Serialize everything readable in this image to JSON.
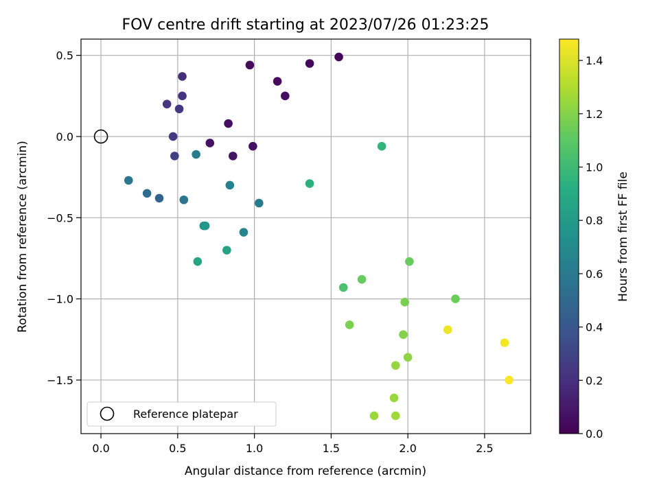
{
  "chart_data": {
    "type": "scatter",
    "title": "FOV centre drift starting at 2023/07/26 01:23:25",
    "xlabel": "Angular distance from reference (arcmin)",
    "ylabel": "Rotation from reference (arcmin)",
    "colorbar_label": "Hours from first FF file",
    "xlim": [
      -0.13,
      2.8
    ],
    "ylim": [
      -1.83,
      0.6
    ],
    "clim": [
      0.0,
      1.48
    ],
    "colormap": "viridis",
    "grid": true,
    "legend_placement": "lower-left",
    "xticks": [
      0.0,
      0.5,
      1.0,
      1.5,
      2.0,
      2.5
    ],
    "xtick_labels": [
      "0.0",
      "0.5",
      "1.0",
      "1.5",
      "2.0",
      "2.5"
    ],
    "yticks": [
      0.5,
      0.0,
      -0.5,
      -1.0,
      -1.5
    ],
    "ytick_labels": [
      "0.5",
      "0.0",
      "−0.5",
      "−1.0",
      "−1.5"
    ],
    "cticks": [
      0.0,
      0.2,
      0.4,
      0.6,
      0.8,
      1.0,
      1.2,
      1.4
    ],
    "ctick_labels": [
      "0.0",
      "0.2",
      "0.4",
      "0.6",
      "0.8",
      "1.0",
      "1.2",
      "1.4"
    ],
    "reference": {
      "name": "Reference platepar",
      "x": 0.0,
      "y": 0.0
    },
    "points": [
      {
        "x": 1.55,
        "y": 0.49,
        "t": 0.02
      },
      {
        "x": 1.36,
        "y": 0.45,
        "t": 0.03
      },
      {
        "x": 0.97,
        "y": 0.44,
        "t": 0.04
      },
      {
        "x": 1.15,
        "y": 0.34,
        "t": 0.04
      },
      {
        "x": 1.2,
        "y": 0.25,
        "t": 0.05
      },
      {
        "x": 0.83,
        "y": 0.08,
        "t": 0.06
      },
      {
        "x": 0.71,
        "y": -0.04,
        "t": 0.07
      },
      {
        "x": 0.99,
        "y": -0.06,
        "t": 0.07
      },
      {
        "x": 0.86,
        "y": -0.12,
        "t": 0.08
      },
      {
        "x": 0.53,
        "y": 0.37,
        "t": 0.2
      },
      {
        "x": 0.53,
        "y": 0.25,
        "t": 0.22
      },
      {
        "x": 0.43,
        "y": 0.2,
        "t": 0.23
      },
      {
        "x": 0.51,
        "y": 0.17,
        "t": 0.24
      },
      {
        "x": 0.47,
        "y": 0.0,
        "t": 0.25
      },
      {
        "x": 0.48,
        "y": -0.12,
        "t": 0.27
      },
      {
        "x": 0.38,
        "y": -0.38,
        "t": 0.48
      },
      {
        "x": 0.3,
        "y": -0.35,
        "t": 0.52
      },
      {
        "x": 0.18,
        "y": -0.27,
        "t": 0.58
      },
      {
        "x": 0.54,
        "y": -0.39,
        "t": 0.58
      },
      {
        "x": 1.03,
        "y": -0.41,
        "t": 0.6
      },
      {
        "x": 0.62,
        "y": -0.11,
        "t": 0.62
      },
      {
        "x": 0.84,
        "y": -0.3,
        "t": 0.64
      },
      {
        "x": 0.93,
        "y": -0.59,
        "t": 0.66
      },
      {
        "x": 0.67,
        "y": -0.55,
        "t": 0.75
      },
      {
        "x": 0.68,
        "y": -0.55,
        "t": 0.78
      },
      {
        "x": 0.82,
        "y": -0.7,
        "t": 0.84
      },
      {
        "x": 0.63,
        "y": -0.77,
        "t": 0.86
      },
      {
        "x": 1.36,
        "y": -0.29,
        "t": 0.94
      },
      {
        "x": 1.83,
        "y": -0.06,
        "t": 0.96
      },
      {
        "x": 1.58,
        "y": -0.93,
        "t": 1.04
      },
      {
        "x": 1.7,
        "y": -0.88,
        "t": 1.13
      },
      {
        "x": 2.01,
        "y": -0.77,
        "t": 1.13
      },
      {
        "x": 2.31,
        "y": -1.0,
        "t": 1.14
      },
      {
        "x": 1.98,
        "y": -1.02,
        "t": 1.17
      },
      {
        "x": 1.62,
        "y": -1.16,
        "t": 1.18
      },
      {
        "x": 1.97,
        "y": -1.22,
        "t": 1.2
      },
      {
        "x": 2.0,
        "y": -1.36,
        "t": 1.22
      },
      {
        "x": 1.92,
        "y": -1.41,
        "t": 1.24
      },
      {
        "x": 1.91,
        "y": -1.61,
        "t": 1.25
      },
      {
        "x": 1.78,
        "y": -1.72,
        "t": 1.25
      },
      {
        "x": 1.92,
        "y": -1.72,
        "t": 1.26
      },
      {
        "x": 2.26,
        "y": -1.19,
        "t": 1.44
      },
      {
        "x": 2.63,
        "y": -1.27,
        "t": 1.46
      },
      {
        "x": 2.66,
        "y": -1.5,
        "t": 1.47
      }
    ]
  }
}
